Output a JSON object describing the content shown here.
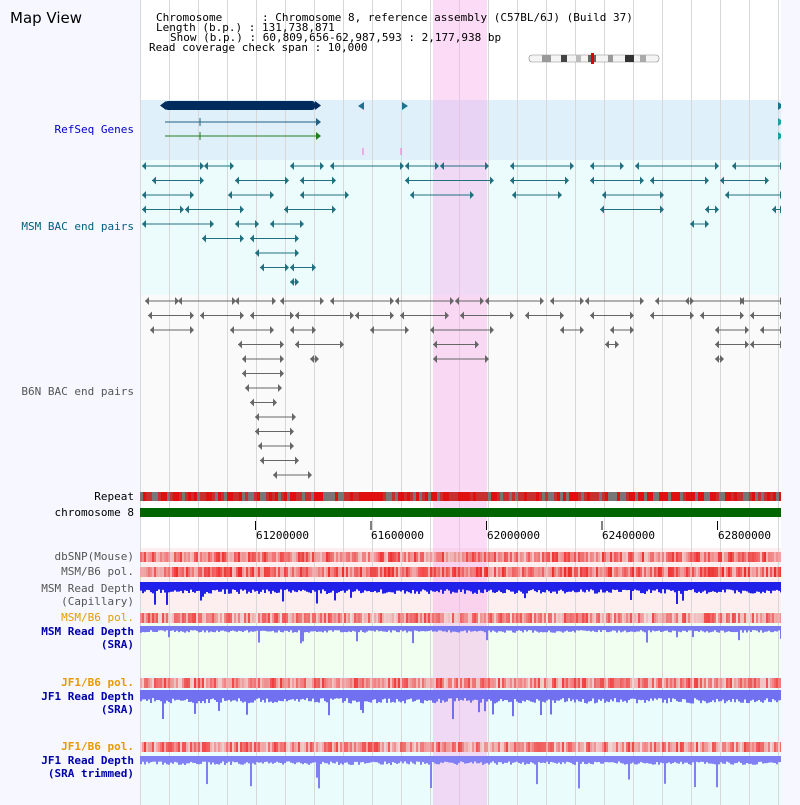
{
  "title": "Map View",
  "info": {
    "line1": "Chromosome      : Chromosome 8, reference assembly (C57BL/6J) (Build 37)",
    "line2": "Length (b.p.) : 131,738,871",
    "line3": "Show (b.p.) : 60,809,656-62,987,593 : 2,177,938 bp",
    "line4": "Read coverage check span : 10,000"
  },
  "tracks": {
    "refseq": "RefSeq Genes",
    "msm_bac": "MSM BAC end pairs",
    "b6n_bac": "B6N BAC end pairs",
    "repeat": "Repeat",
    "chromosome": "chromosome 8",
    "dbsnp": "dbSNP(Mouse)",
    "msm_b6_pol": "MSM/B6 pol.",
    "msm_depth_cap_1": "MSM Read Depth",
    "msm_depth_cap_2": "(Capillary)",
    "msm_b6_pol2": "MSM/B6 pol.",
    "msm_depth_sra_1": "MSM Read Depth",
    "msm_depth_sra_2": "(SRA)",
    "jf1_b6_pol": "JF1/B6 pol.",
    "jf1_depth_sra_1": "JF1 Read Depth",
    "jf1_depth_sra_2": "(SRA)",
    "jf1_b6_pol2": "JF1/B6 pol.",
    "jf1_depth_trim_1": "JF1 Read Depth",
    "jf1_depth_trim_2": "(SRA trimmed)"
  },
  "axis_ticks": [
    "61200000",
    "61600000",
    "62000000",
    "62400000",
    "62800000"
  ],
  "colors": {
    "refseq_label": "#0000cc",
    "msm_bac_label": "#005f7f",
    "b6n_bac_label": "#555555",
    "pol_orange": "#e69a00",
    "depth_blue": "#0000aa",
    "chromosome_green": "#006400",
    "highlight": "#f6b0ec"
  }
}
